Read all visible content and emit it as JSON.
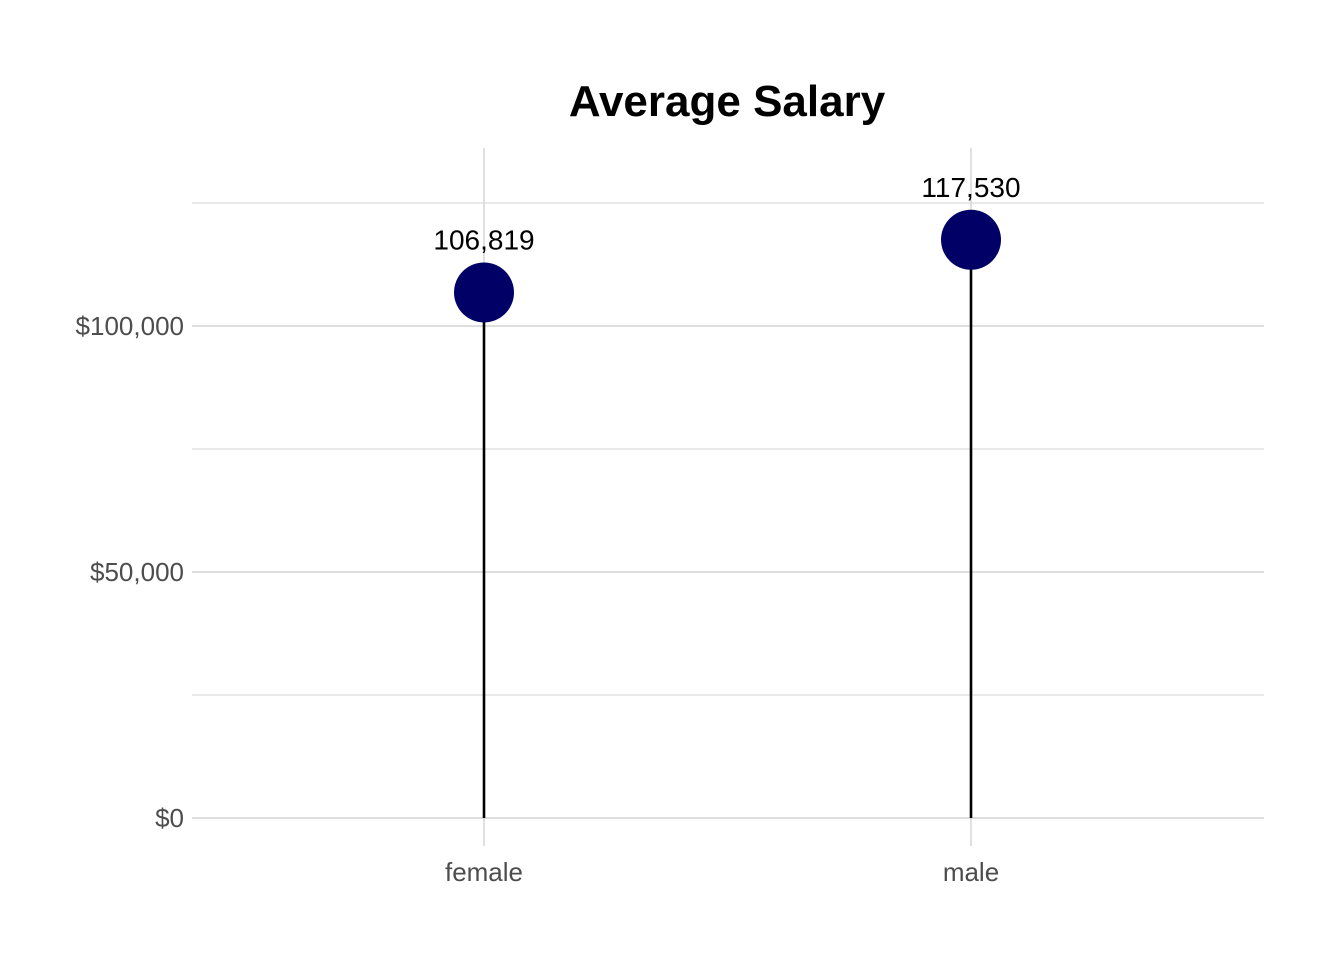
{
  "chart_data": {
    "type": "lollipop",
    "title": "Average Salary",
    "xlabel": "",
    "ylabel": "",
    "categories": [
      "female",
      "male"
    ],
    "values": [
      106819,
      117530
    ],
    "data_labels": [
      "106,819",
      "117,530"
    ],
    "y_ticks": [
      0,
      50000,
      100000
    ],
    "y_tick_labels": [
      "$0",
      "$50,000",
      "$100,000"
    ],
    "ylim": [
      0,
      136000
    ],
    "grid": true,
    "legend": "none",
    "colors": {
      "point": "#000066",
      "stem": "#000000",
      "grid": "#d3d3d3"
    }
  }
}
